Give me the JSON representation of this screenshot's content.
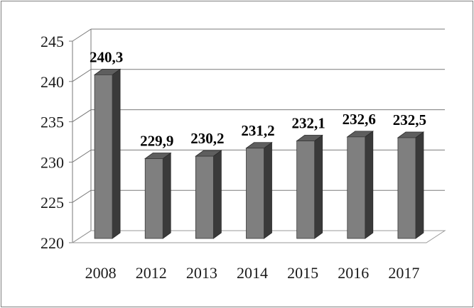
{
  "chart_data": {
    "type": "bar",
    "categories": [
      "2008",
      "2012",
      "2013",
      "2014",
      "2015",
      "2016",
      "2017"
    ],
    "values": [
      240.3,
      229.9,
      230.2,
      231.2,
      232.1,
      232.6,
      232.5
    ],
    "value_labels": [
      "240,3",
      "229,9",
      "230,2",
      "231,2",
      "232,1",
      "232,6",
      "232,5"
    ],
    "y_ticks": [
      "220",
      "225",
      "230",
      "235",
      "240",
      "245"
    ],
    "ylim": [
      220,
      245
    ],
    "grid": true,
    "legend": "none",
    "style": "3d-column",
    "colors": {
      "bar_front": "#7f7f7f",
      "bar_side": "#3a3a3a",
      "bar_top": "#5e5e5e",
      "grid": "#7a7a7a",
      "floor": "#9a9a9a"
    }
  }
}
